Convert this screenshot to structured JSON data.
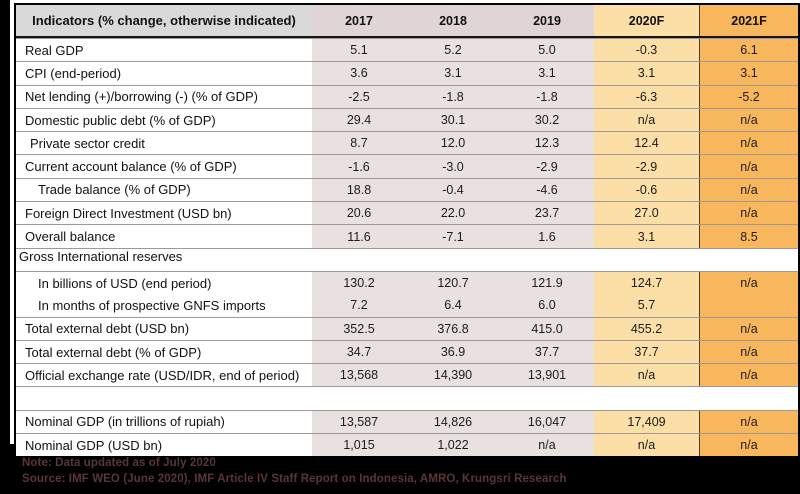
{
  "table": {
    "header": {
      "indicator": "Indicators (% change, otherwise indicated)",
      "years": [
        "2017",
        "2018",
        "2019",
        "2020F",
        "2021F"
      ]
    },
    "rows": [
      {
        "label": "Real GDP",
        "indent": 0,
        "type": "data",
        "values": [
          "5.1",
          "5.2",
          "5.0",
          "-0.3",
          "6.1"
        ]
      },
      {
        "label": "CPI (end-period)",
        "indent": 0,
        "type": "data",
        "values": [
          "3.6",
          "3.1",
          "3.1",
          "3.1",
          "3.1"
        ]
      },
      {
        "label": "Net lending (+)/borrowing (-) (% of GDP)",
        "indent": 0,
        "type": "data",
        "values": [
          "-2.5",
          "-1.8",
          "-1.8",
          "-6.3",
          "-5.2"
        ]
      },
      {
        "label": "Domestic public debt (% of GDP)",
        "indent": 0,
        "type": "data",
        "values": [
          "29.4",
          "30.1",
          "30.2",
          "n/a",
          "n/a"
        ]
      },
      {
        "label": "Private sector credit",
        "indent": 1,
        "type": "data",
        "values": [
          "8.7",
          "12.0",
          "12.3",
          "12.4",
          "n/a"
        ]
      },
      {
        "label": "Current account balance (% of GDP)",
        "indent": 0,
        "type": "data",
        "values": [
          "-1.6",
          "-3.0",
          "-2.9",
          "-2.9",
          "n/a"
        ]
      },
      {
        "label": "Trade balance (% of GDP)",
        "indent": 2,
        "type": "data",
        "values": [
          "18.8",
          "-0.4",
          "-4.6",
          "-0.6",
          "n/a"
        ]
      },
      {
        "label": "Foreign Direct Investment (USD bn)",
        "indent": 0,
        "type": "data",
        "values": [
          "20.6",
          "22.0",
          "23.7",
          "27.0",
          "n/a"
        ]
      },
      {
        "label": "Overall balance",
        "indent": 0,
        "type": "data",
        "values": [
          "11.6",
          "-7.1",
          "1.6",
          "3.1",
          "8.5"
        ]
      },
      {
        "label": "Gross International reserves",
        "indent": 0,
        "type": "section",
        "values": [
          "",
          "",
          "",
          "",
          ""
        ]
      },
      {
        "label": "In billions of USD (end period)",
        "indent": 2,
        "type": "data",
        "values": [
          "130.2",
          "120.7",
          "121.9",
          "124.7",
          "n/a"
        ]
      },
      {
        "label": "In months of prospective GNFS imports",
        "indent": 2,
        "type": "data",
        "no_top_border": true,
        "values": [
          "7.2",
          "6.4",
          "6.0",
          "5.7",
          ""
        ]
      },
      {
        "label": "Total external debt (USD bn)",
        "indent": 0,
        "type": "data",
        "values": [
          "352.5",
          "376.8",
          "415.0",
          "455.2",
          "n/a"
        ]
      },
      {
        "label": "Total external debt (% of GDP)",
        "indent": 0,
        "type": "data",
        "values": [
          "34.7",
          "36.9",
          "37.7",
          "37.7",
          "n/a"
        ]
      },
      {
        "label": "Official exchange rate (USD/IDR, end of period)",
        "indent": 0,
        "type": "data",
        "values": [
          "13,568",
          "14,390",
          "13,901",
          "n/a",
          "n/a"
        ]
      },
      {
        "label": "",
        "indent": 0,
        "type": "gap",
        "values": [
          "",
          "",
          "",
          "",
          ""
        ]
      },
      {
        "label": "Nominal GDP (in trillions of rupiah)",
        "indent": 0,
        "type": "data",
        "values": [
          "13,587",
          "14,826",
          "16,047",
          "17,409",
          "n/a"
        ]
      },
      {
        "label": "Nominal GDP (USD bn)",
        "indent": 0,
        "type": "data",
        "values": [
          "1,015",
          "1,022",
          "n/a",
          "n/a",
          "n/a"
        ]
      }
    ]
  },
  "footer": {
    "note": "Note: Data updated as of July 2020",
    "source": "Source: IMF WEO (June 2020),  IMF  Article IV Staff Report on Indonesia, AMRO,  Krungsri Research"
  },
  "colors": {
    "historical_cell": "#E9E0E0",
    "historical_header": "#E0D5D6",
    "indicator_header": "#D9D9D9",
    "forecast_2020": "#FCDEA7",
    "forecast_2021": "#F8B75C",
    "footer_text": "#5a3636",
    "page_background": "#000000"
  }
}
